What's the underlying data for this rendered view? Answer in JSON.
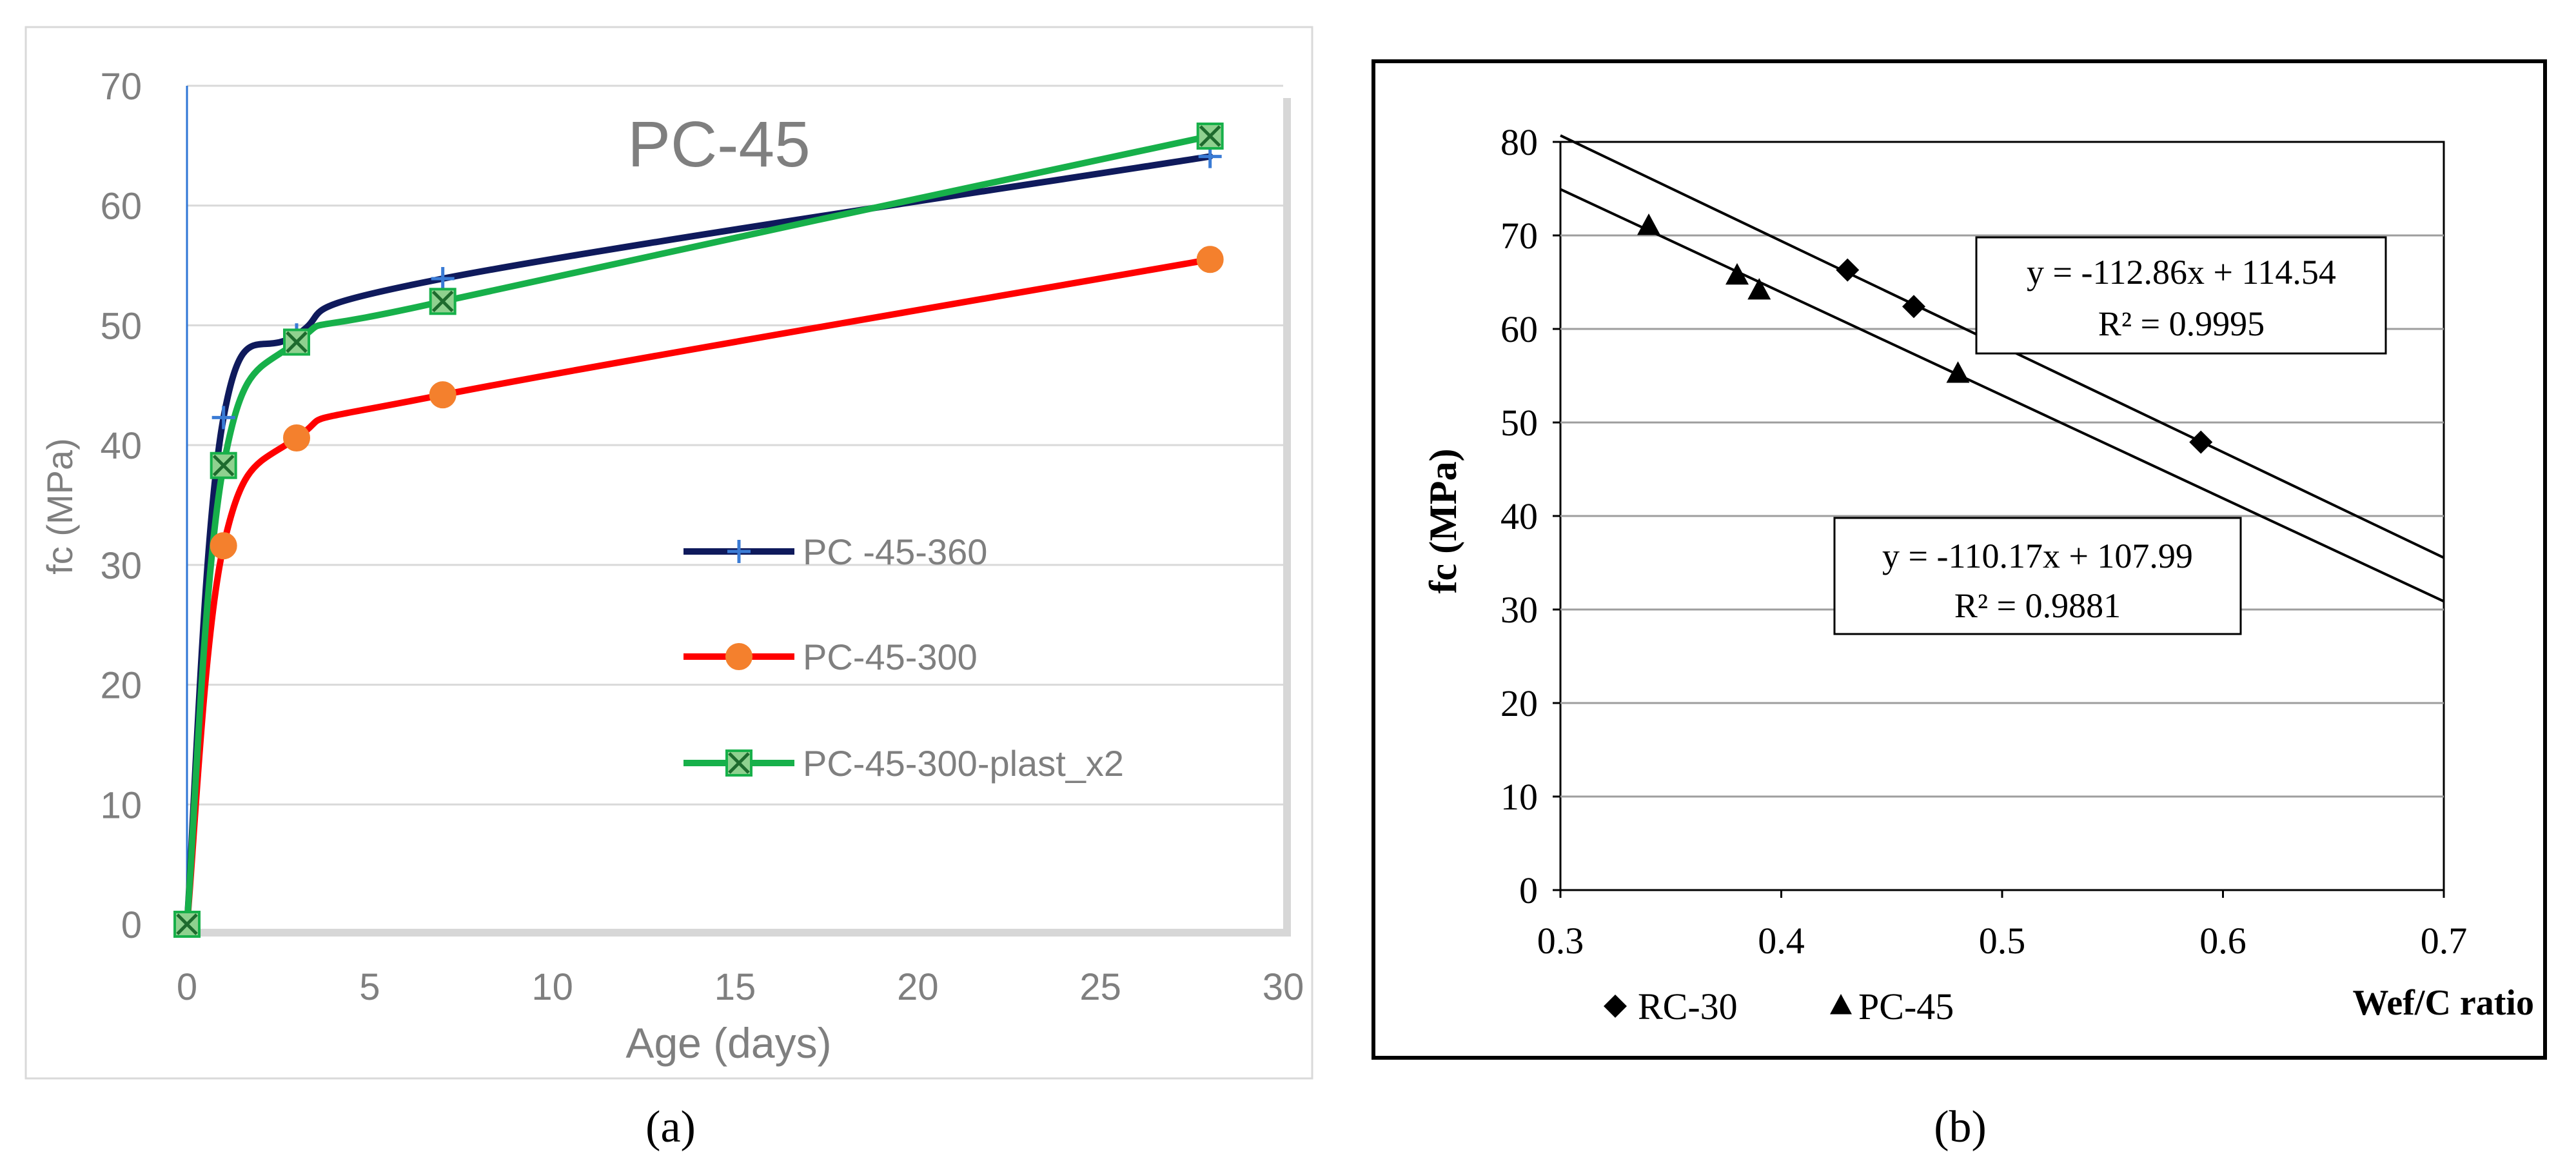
{
  "colors": {
    "navy": "#0f1a5c",
    "red": "#ff0000",
    "green": "#17b04a",
    "orange": "#f4802d",
    "plus_marker": "#3a7bd5",
    "yaxis_line": "#2e75d6",
    "gray_text": "#7f7f7f",
    "grid_a": "#d9d9d9",
    "grid_b": "#9e9e9e",
    "black": "#000000"
  },
  "chart_data": [
    {
      "type": "line",
      "panel": "(a)",
      "title": "PC-45",
      "xlabel": "Age (days)",
      "ylabel": "fc (MPa)",
      "xlim": [
        0,
        30
      ],
      "ylim": [
        0,
        70
      ],
      "xticks": [
        "0",
        "5",
        "10",
        "15",
        "20",
        "25",
        "30"
      ],
      "yticks": [
        "0",
        "10",
        "20",
        "30",
        "40",
        "50",
        "60",
        "70"
      ],
      "grid": true,
      "legend_position": "center-right",
      "series": [
        {
          "name": "PC -45-360",
          "color_key": "navy",
          "marker": "plus",
          "x": [
            0,
            1,
            3,
            7,
            28
          ],
          "y": [
            0,
            42.3,
            49.2,
            53.9,
            64.1
          ]
        },
        {
          "name": "PC-45-300",
          "color_key": "red",
          "marker": "circle",
          "x": [
            0,
            1,
            3,
            7,
            28
          ],
          "y": [
            0,
            31.6,
            40.6,
            44.2,
            55.5
          ]
        },
        {
          "name": "PC-45-300-plast_x2",
          "color_key": "green",
          "marker": "square-x",
          "x": [
            0,
            1,
            3,
            7,
            28
          ],
          "y": [
            0,
            38.3,
            48.6,
            52.0,
            65.8
          ]
        }
      ]
    },
    {
      "type": "scatter",
      "panel": "(b)",
      "title": "",
      "xlabel": "Wef/C ratio",
      "ylabel": "fc (MPa)",
      "xlim": [
        0.3,
        0.7
      ],
      "ylim": [
        0,
        80
      ],
      "xticks": [
        "0.3",
        "0.4",
        "0.5",
        "0.6",
        "0.7"
      ],
      "yticks": [
        "0",
        "10",
        "20",
        "30",
        "40",
        "50",
        "60",
        "70",
        "80"
      ],
      "grid": true,
      "legend_position": "bottom-left",
      "series": [
        {
          "name": "RC-30",
          "marker": "diamond",
          "x": [
            0.43,
            0.46,
            0.59
          ],
          "y": [
            66.3,
            62.4,
            47.9
          ]
        },
        {
          "name": "PC-45",
          "marker": "triangle",
          "x": [
            0.34,
            0.38,
            0.39,
            0.48
          ],
          "y": [
            71.1,
            65.8,
            64.2,
            55.3
          ]
        }
      ],
      "trendlines": [
        {
          "series": "RC-30",
          "slope": -112.86,
          "intercept": 114.54
        },
        {
          "series": "PC-45",
          "slope": -110.17,
          "intercept": 107.99
        }
      ],
      "annotations": [
        {
          "line1": "y = -112.86x  + 114.54",
          "line2": "R² = 0.9995"
        },
        {
          "line1": "y = -110.17x  + 107.99",
          "line2": "R² = 0.9881"
        }
      ]
    }
  ],
  "captions": {
    "a": "(a)",
    "b": "(b)"
  }
}
